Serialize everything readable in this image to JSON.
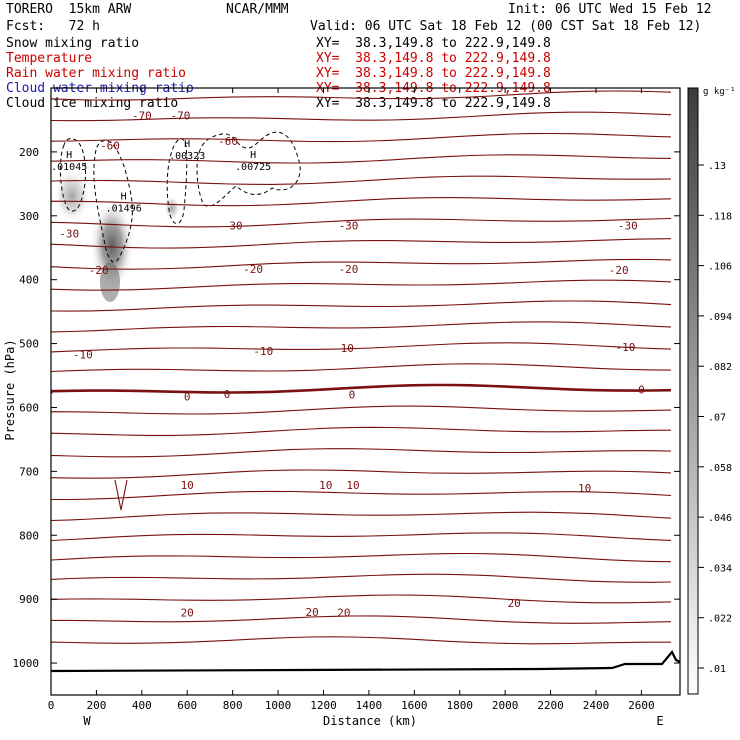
{
  "header": {
    "model_name": "TORERO  15km ARW",
    "center": "NCAR/MMM",
    "init": "Init: 06 UTC Wed 15 Feb 12",
    "fcst": "Fcst:   72 h",
    "valid": "Valid: 06 UTC Sat 18 Feb 12 (00 CST Sat 18 Feb 12)"
  },
  "fields": [
    {
      "name": "Snow mixing ratio",
      "xy": "XY=  38.3,149.8 to 222.9,149.8",
      "color": "#000000"
    },
    {
      "name": "Temperature",
      "xy": "XY=  38.3,149.8 to 222.9,149.8",
      "color": "#cc0000"
    },
    {
      "name": "Rain water mixing ratio",
      "xy": "XY=  38.3,149.8 to 222.9,149.8",
      "color": "#cc0000"
    },
    {
      "name": "Cloud water mixing ratio",
      "xy": "XY=  38.3,149.8 to 222.9,149.8",
      "color": "#1a1aa6"
    },
    {
      "name": "Cloud ice mixing ratio",
      "xy": "XY=  38.3,149.8 to 222.9,149.8",
      "color": "#000000"
    }
  ],
  "colorbar": {
    "unit": "g kg⁻¹",
    "ticks": [
      ".01",
      ".022",
      ".034",
      ".046",
      ".058",
      ".07",
      ".082",
      ".094",
      ".106",
      ".118",
      ".13"
    ]
  },
  "chart_data": {
    "type": "line",
    "xlabel": "Distance (km)",
    "ylabel": "Pressure (hPa)",
    "xlim": [
      0,
      2770
    ],
    "ylim": [
      1050,
      100
    ],
    "x_ticks": [
      "0",
      "200",
      "400",
      "600",
      "800",
      "1000",
      "1200",
      "1400",
      "1600",
      "1800",
      "2000",
      "2200",
      "2400",
      "2600"
    ],
    "y_ticks": [
      "200",
      "300",
      "400",
      "500",
      "600",
      "700",
      "800",
      "900",
      "1000"
    ],
    "x_end_labels": {
      "left": "W",
      "right": "E"
    },
    "temperature_labels": [
      {
        "text": "-70",
        "x": 400,
        "p": 143
      },
      {
        "text": "-70",
        "x": 570,
        "p": 143
      },
      {
        "text": "-60",
        "x": 260,
        "p": 190
      },
      {
        "text": "-60",
        "x": 780,
        "p": 183
      },
      {
        "text": "-30",
        "x": 80,
        "p": 328
      },
      {
        "text": "-30",
        "x": 800,
        "p": 315
      },
      {
        "text": "-30",
        "x": 1310,
        "p": 315
      },
      {
        "text": "-30",
        "x": 2540,
        "p": 315
      },
      {
        "text": "-20",
        "x": 210,
        "p": 385
      },
      {
        "text": "-20",
        "x": 890,
        "p": 383
      },
      {
        "text": "-20",
        "x": 1310,
        "p": 383
      },
      {
        "text": "-20",
        "x": 2500,
        "p": 385
      },
      {
        "text": "-10",
        "x": 140,
        "p": 517
      },
      {
        "text": "-10",
        "x": 935,
        "p": 512
      },
      {
        "text": "-10",
        "x": 1290,
        "p": 507
      },
      {
        "text": "-10",
        "x": 2530,
        "p": 505
      },
      {
        "text": "0",
        "x": 600,
        "p": 583
      },
      {
        "text": "0",
        "x": 775,
        "p": 579
      },
      {
        "text": "0",
        "x": 1325,
        "p": 580
      },
      {
        "text": "0",
        "x": 2600,
        "p": 572
      },
      {
        "text": "10",
        "x": 600,
        "p": 721
      },
      {
        "text": "10",
        "x": 1210,
        "p": 721
      },
      {
        "text": "10",
        "x": 1330,
        "p": 721
      },
      {
        "text": "10",
        "x": 2350,
        "p": 726
      },
      {
        "text": "20",
        "x": 600,
        "p": 921
      },
      {
        "text": "20",
        "x": 1150,
        "p": 920
      },
      {
        "text": "20",
        "x": 1290,
        "p": 921
      },
      {
        "text": "20",
        "x": 2040,
        "p": 906
      }
    ],
    "maxima_labels": [
      {
        "text": ".01045",
        "x": 80,
        "p": 225
      },
      {
        "text": ".01496",
        "x": 320,
        "p": 290
      },
      {
        "text": ".00323",
        "x": 600,
        "p": 208
      },
      {
        "text": ".00725",
        "x": 890,
        "p": 225
      }
    ],
    "snow_maximum_g_per_kg": 0.01496,
    "terrain_surface_hPa": 1013
  }
}
